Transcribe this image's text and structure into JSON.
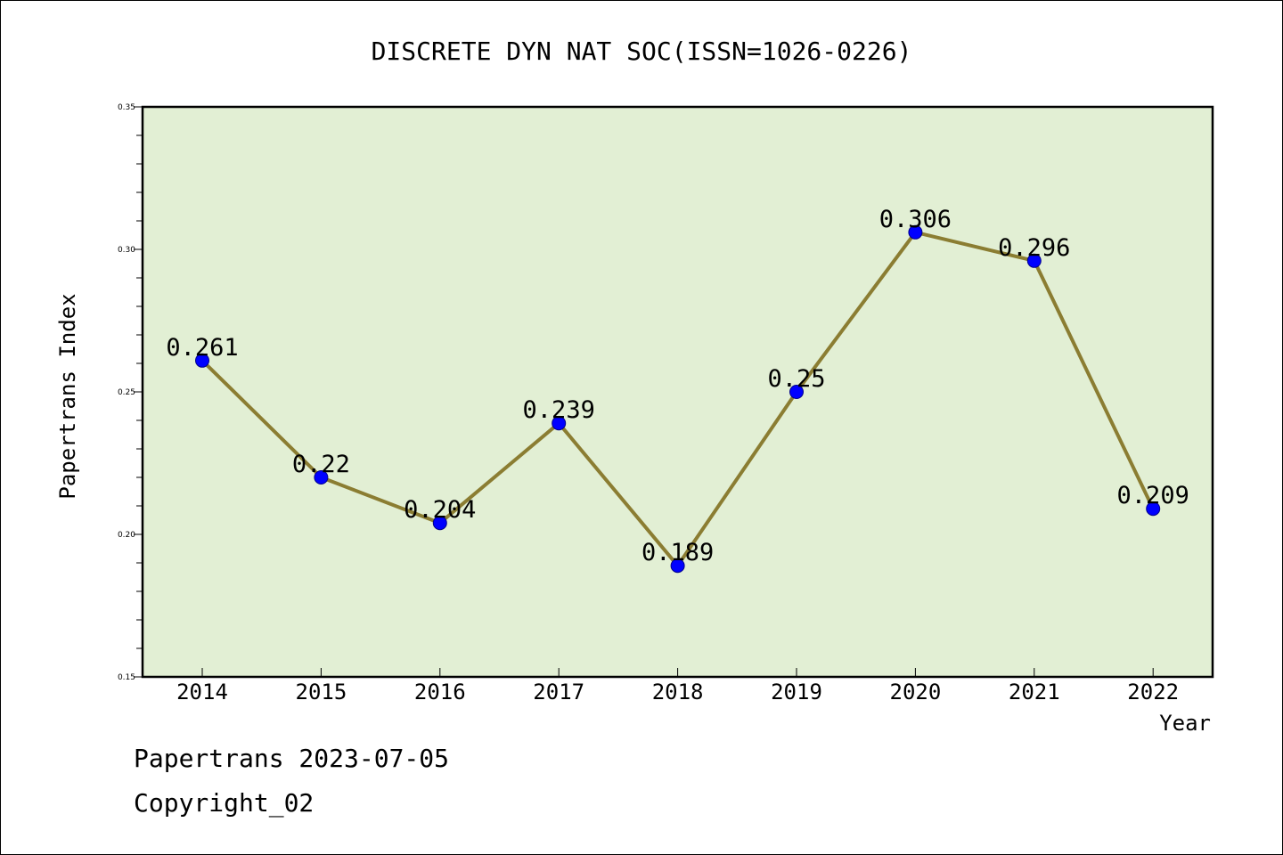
{
  "colors": {
    "plot_background": "#e2efd4",
    "line": "#8b7d32",
    "marker": "#0000ff",
    "marker_edge": "#00008b"
  },
  "chart_data": {
    "type": "line",
    "title": "DISCRETE DYN NAT SOC(ISSN=1026-0226)",
    "xlabel": "Year",
    "ylabel": "Papertrans Index",
    "categories": [
      "2014",
      "2015",
      "2016",
      "2017",
      "2018",
      "2019",
      "2020",
      "2021",
      "2022"
    ],
    "series": [
      {
        "name": "Papertrans Index",
        "values": [
          0.261,
          0.22,
          0.204,
          0.239,
          0.189,
          0.25,
          0.306,
          0.296,
          0.209
        ],
        "labels": [
          "0.261",
          "0.22",
          "0.204",
          "0.239",
          "0.189",
          "0.25",
          "0.306",
          "0.296",
          "0.209"
        ]
      }
    ],
    "ylim": [
      0.15,
      0.35
    ],
    "yticks": [
      0.15,
      0.2,
      0.25,
      0.3,
      0.35
    ],
    "ytick_labels": [
      "0.15",
      "0.20",
      "0.25",
      "0.30",
      "0.35"
    ],
    "minor_tick_step": 0.01,
    "grid": false,
    "legend": "none"
  },
  "footer": {
    "line1": "Papertrans 2023-07-05",
    "line2": "Copyright_02"
  }
}
